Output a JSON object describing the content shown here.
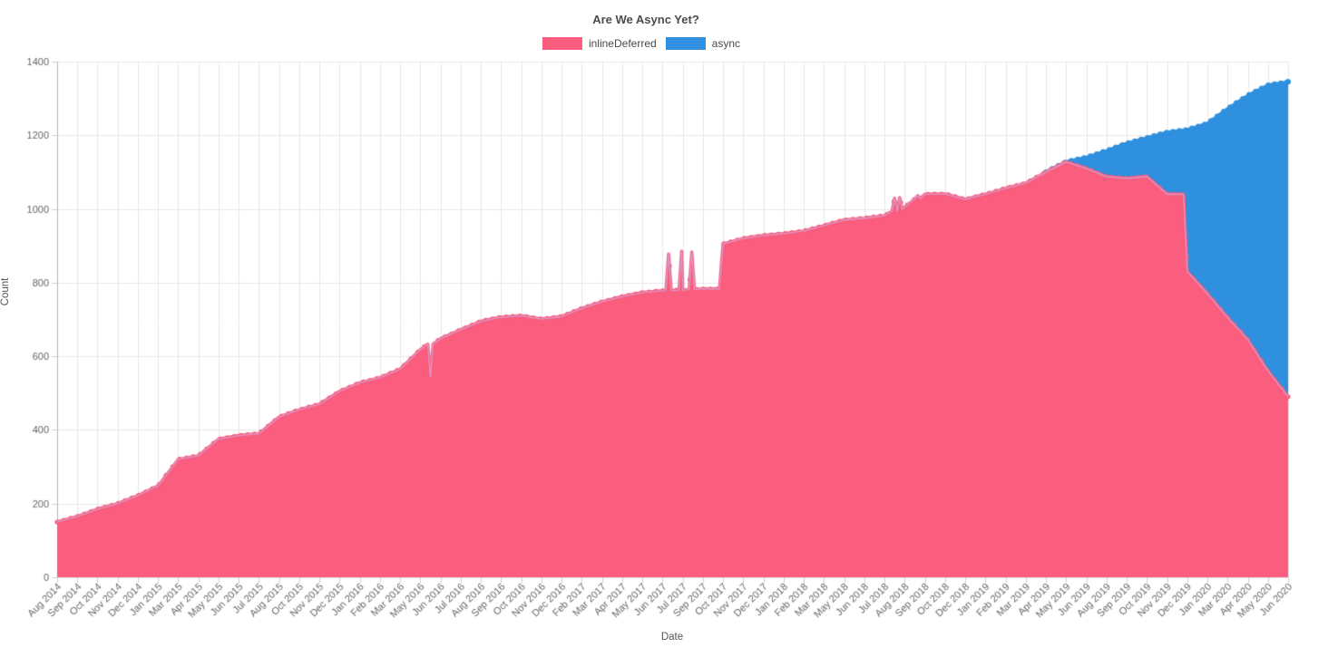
{
  "page": {
    "background": "#ffffff"
  },
  "header": {
    "title": "Are We Async Yet?"
  },
  "legend": [
    {
      "label": "inlineDeferred",
      "color": "#FA5D7D"
    },
    {
      "label": "async",
      "color": "#2E90DE"
    }
  ],
  "axes": {
    "x_title": "Date",
    "y_title": "Count",
    "y_ticks": [
      0,
      200,
      400,
      600,
      800,
      1000,
      1200,
      1400
    ]
  },
  "chart_data": {
    "type": "area",
    "stacked": true,
    "title": "Are We Async Yet?",
    "xlabel": "Date",
    "ylabel": "Count",
    "ylim": [
      0,
      1400
    ],
    "grid": true,
    "legend_position": "top",
    "colors": {
      "inlineDeferred": "#FA5D7D",
      "async": "#2E90DE",
      "inline_edge_line": "#D1A6D8",
      "gridline": "#e7e7e7",
      "axis_line": "#b5b5b5",
      "tick_text": "#666666"
    },
    "categories": [
      "Aug 2014",
      "Sep 2014",
      "Oct 2014",
      "Nov 2014",
      "Dec 2014",
      "Jan 2015",
      "Mar 2015",
      "Apr 2015",
      "May 2015",
      "Jun 2015",
      "Jul 2015",
      "Aug 2015",
      "Oct 2015",
      "Nov 2015",
      "Dec 2015",
      "Jan 2016",
      "Feb 2016",
      "Mar 2016",
      "May 2016",
      "Jun 2016",
      "Jul 2016",
      "Aug 2016",
      "Sep 2016",
      "Oct 2016",
      "Nov 2016",
      "Dec 2016",
      "Feb 2017",
      "Mar 2017",
      "Apr 2017",
      "May 2017",
      "Jun 2017",
      "Jul 2017",
      "Sep 2017",
      "Oct 2017",
      "Nov 2017",
      "Dec 2017",
      "Jan 2018",
      "Feb 2018",
      "Mar 2018",
      "May 2018",
      "Jun 2018",
      "Jul 2018",
      "Aug 2018",
      "Sep 2018",
      "Oct 2018",
      "Dec 2018",
      "Jan 2019",
      "Feb 2019",
      "Mar 2019",
      "Apr 2019",
      "May 2019",
      "Jun 2019",
      "Aug 2019",
      "Sep 2019",
      "Oct 2019",
      "Nov 2019",
      "Dec 2019",
      "Jan 2020",
      "Mar 2020",
      "Apr 2020",
      "May 2020",
      "Jun 2020"
    ],
    "series": [
      {
        "name": "inlineDeferred",
        "color": "#FA5D7D",
        "values": [
          150,
          165,
          185,
          200,
          222,
          248,
          320,
          330,
          375,
          385,
          390,
          435,
          455,
          470,
          505,
          528,
          542,
          565,
          618,
          648,
          672,
          695,
          706,
          710,
          701,
          708,
          730,
          748,
          762,
          773,
          778,
          780,
          783,
          905,
          920,
          928,
          933,
          940,
          955,
          970,
          975,
          982,
          1005,
          1040,
          1041,
          1026,
          1040,
          1056,
          1070,
          1100,
          1128,
          1110,
          1088,
          1083,
          1088,
          1040,
          830,
          770,
          705,
          645,
          560,
          490
        ],
        "sub_tick_spikes": [
          {
            "i": 18.5,
            "v": 543
          },
          {
            "i": 30.3,
            "v": 878
          },
          {
            "i": 30.95,
            "v": 885
          },
          {
            "i": 31.45,
            "v": 883
          },
          {
            "i": 41.5,
            "v": 1029
          },
          {
            "i": 41.75,
            "v": 1031
          },
          {
            "i": 42.65,
            "v": 1036
          }
        ]
      },
      {
        "name": "async",
        "color": "#2E90DE",
        "values": [
          0,
          0,
          0,
          0,
          0,
          0,
          0,
          0,
          0,
          0,
          0,
          0,
          0,
          0,
          0,
          0,
          0,
          0,
          0,
          0,
          0,
          0,
          0,
          0,
          0,
          0,
          0,
          0,
          0,
          0,
          0,
          0,
          0,
          0,
          0,
          0,
          0,
          0,
          0,
          0,
          0,
          0,
          0,
          0,
          0,
          0,
          0,
          0,
          0,
          0,
          0,
          30,
          70,
          95,
          105,
          168,
          385,
          462,
          567,
          663,
          776,
          855
        ],
        "sub_tick_spikes": []
      }
    ]
  }
}
